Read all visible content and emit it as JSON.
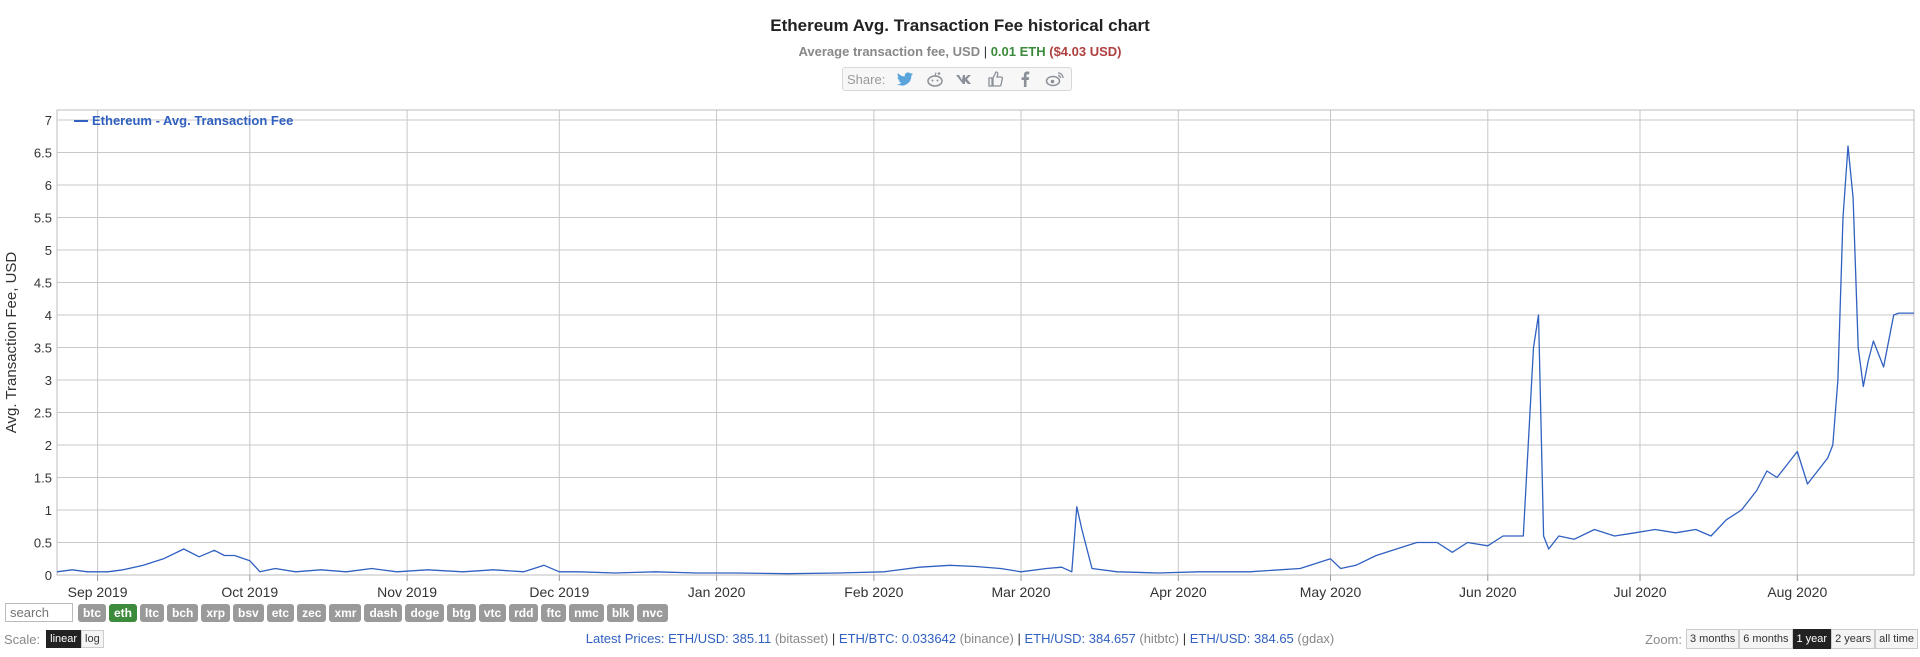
{
  "header": {
    "title": "Ethereum Avg. Transaction Fee historical chart",
    "subtitle_label": "Average transaction fee, USD",
    "subtitle_sep": " | ",
    "subtitle_eth": "0.01 ETH",
    "subtitle_usd": "($4.03 USD)"
  },
  "share": {
    "label": "Share:",
    "icons": [
      "twitter-icon",
      "reddit-icon",
      "vk-icon",
      "like-icon",
      "facebook-icon",
      "weibo-icon"
    ]
  },
  "chart_data": {
    "type": "line",
    "ylabel": "Avg. Transaction Fee, USD",
    "ylim": [
      0,
      7
    ],
    "yticks": [
      "0",
      "0.5",
      "1",
      "1.5",
      "2",
      "2.5",
      "3",
      "3.5",
      "4",
      "4.5",
      "5",
      "5.5",
      "6",
      "6.5",
      "7"
    ],
    "xticks": [
      "Sep 2019",
      "Oct 2019",
      "Nov 2019",
      "Dec 2019",
      "Jan 2020",
      "Feb 2020",
      "Mar 2020",
      "Apr 2020",
      "May 2020",
      "Jun 2020",
      "Jul 2020",
      "Aug 2020"
    ],
    "x_start": "2019-08-24",
    "x_end": "2020-08-24",
    "grid": true,
    "legend_position": "top-left",
    "series": [
      {
        "name": "Ethereum - Avg. Transaction Fee",
        "color": "#3060c0",
        "x": [
          "2019-08-24",
          "2019-08-27",
          "2019-08-30",
          "2019-09-03",
          "2019-09-06",
          "2019-09-10",
          "2019-09-14",
          "2019-09-18",
          "2019-09-21",
          "2019-09-24",
          "2019-09-26",
          "2019-09-28",
          "2019-10-01",
          "2019-10-03",
          "2019-10-06",
          "2019-10-10",
          "2019-10-15",
          "2019-10-20",
          "2019-10-25",
          "2019-10-30",
          "2019-11-05",
          "2019-11-12",
          "2019-11-18",
          "2019-11-24",
          "2019-11-28",
          "2019-12-01",
          "2019-12-05",
          "2019-12-12",
          "2019-12-20",
          "2019-12-28",
          "2020-01-05",
          "2020-01-15",
          "2020-01-25",
          "2020-02-03",
          "2020-02-10",
          "2020-02-16",
          "2020-02-21",
          "2020-02-26",
          "2020-03-01",
          "2020-03-06",
          "2020-03-09",
          "2020-03-11",
          "2020-03-12",
          "2020-03-13",
          "2020-03-15",
          "2020-03-20",
          "2020-03-28",
          "2020-04-05",
          "2020-04-15",
          "2020-04-25",
          "2020-05-01",
          "2020-05-03",
          "2020-05-06",
          "2020-05-10",
          "2020-05-14",
          "2020-05-18",
          "2020-05-22",
          "2020-05-25",
          "2020-05-28",
          "2020-06-01",
          "2020-06-04",
          "2020-06-06",
          "2020-06-08",
          "2020-06-10",
          "2020-06-11",
          "2020-06-12",
          "2020-06-13",
          "2020-06-15",
          "2020-06-18",
          "2020-06-22",
          "2020-06-26",
          "2020-06-30",
          "2020-07-04",
          "2020-07-08",
          "2020-07-12",
          "2020-07-15",
          "2020-07-18",
          "2020-07-21",
          "2020-07-24",
          "2020-07-26",
          "2020-07-28",
          "2020-07-30",
          "2020-08-01",
          "2020-08-03",
          "2020-08-05",
          "2020-08-07",
          "2020-08-08",
          "2020-08-09",
          "2020-08-10",
          "2020-08-11",
          "2020-08-12",
          "2020-08-13",
          "2020-08-14",
          "2020-08-15",
          "2020-08-16",
          "2020-08-18",
          "2020-08-20",
          "2020-08-21",
          "2020-08-22",
          "2020-08-24"
        ],
        "values": [
          0.05,
          0.08,
          0.05,
          0.05,
          0.08,
          0.15,
          0.25,
          0.4,
          0.28,
          0.38,
          0.3,
          0.3,
          0.22,
          0.05,
          0.1,
          0.05,
          0.08,
          0.05,
          0.1,
          0.05,
          0.08,
          0.05,
          0.08,
          0.05,
          0.15,
          0.05,
          0.05,
          0.03,
          0.05,
          0.03,
          0.03,
          0.02,
          0.03,
          0.05,
          0.12,
          0.15,
          0.13,
          0.1,
          0.05,
          0.1,
          0.12,
          0.05,
          1.05,
          0.7,
          0.1,
          0.05,
          0.03,
          0.05,
          0.05,
          0.1,
          0.25,
          0.1,
          0.15,
          0.3,
          0.4,
          0.5,
          0.5,
          0.35,
          0.5,
          0.45,
          0.6,
          0.6,
          0.6,
          3.5,
          4.0,
          0.6,
          0.4,
          0.6,
          0.55,
          0.7,
          0.6,
          0.65,
          0.7,
          0.65,
          0.7,
          0.6,
          0.85,
          1.0,
          1.3,
          1.6,
          1.5,
          1.7,
          1.9,
          1.4,
          1.6,
          1.8,
          2.0,
          3.0,
          5.5,
          6.6,
          5.8,
          3.5,
          2.9,
          3.3,
          3.6,
          3.2,
          4.0,
          4.03,
          4.03,
          4.03
        ]
      }
    ]
  },
  "footer": {
    "search_placeholder": "search",
    "coins": [
      "btc",
      "eth",
      "ltc",
      "bch",
      "xrp",
      "bsv",
      "etc",
      "zec",
      "xmr",
      "dash",
      "doge",
      "btg",
      "vtc",
      "rdd",
      "ftc",
      "nmc",
      "blk",
      "nvc"
    ],
    "active_coin": "eth",
    "scale_label": "Scale:",
    "scale_options": [
      "linear",
      "log"
    ],
    "scale_active": "linear",
    "latest_prices_label": "Latest Prices:",
    "prices": [
      {
        "pair": "ETH/USD:",
        "value": "385.11",
        "source": "(bitasset)"
      },
      {
        "pair": "ETH/BTC:",
        "value": "0.033642",
        "source": "(binance)"
      },
      {
        "pair": "ETH/USD:",
        "value": "384.657",
        "source": "(hitbtc)"
      },
      {
        "pair": "ETH/USD:",
        "value": "384.65",
        "source": "(gdax)"
      }
    ],
    "zoom_label": "Zoom:",
    "zoom_options": [
      "3 months",
      "6 months",
      "1 year",
      "2 years",
      "all time"
    ],
    "zoom_active": "1 year"
  },
  "colors": {
    "line": "#3060c0",
    "grid": "#c8c8c8",
    "active_coin": "#3c8a3c",
    "eth_value": "#3c8a3c",
    "usd_value": "#b04040"
  }
}
